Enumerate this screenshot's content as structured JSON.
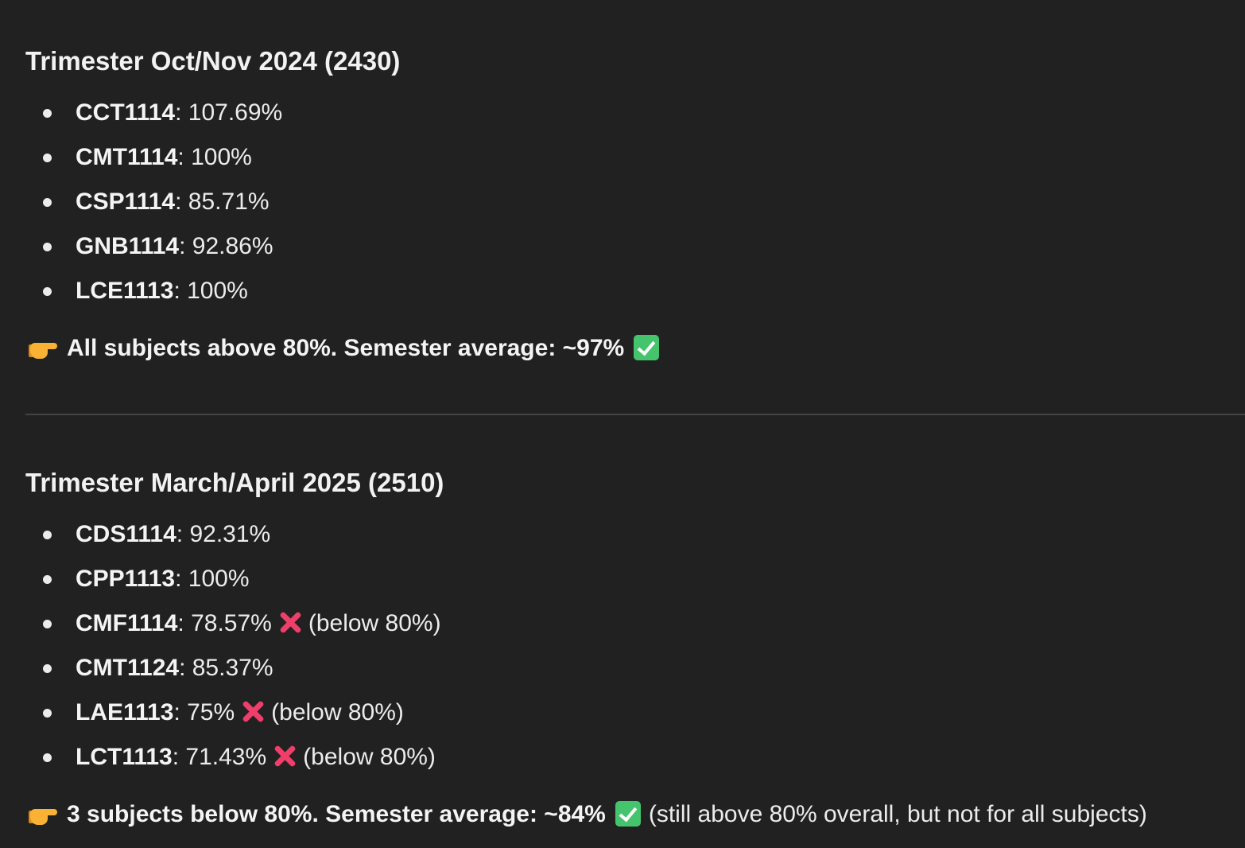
{
  "sections": [
    {
      "title": "Trimester Oct/Nov 2024 (2430)",
      "subjects": [
        {
          "code": "CCT1114",
          "score": ": 107.69%",
          "note": ""
        },
        {
          "code": "CMT1114",
          "score": ": 100%",
          "note": ""
        },
        {
          "code": "CSP1114",
          "score": ": 85.71%",
          "note": ""
        },
        {
          "code": "GNB1114",
          "score": ": 92.86%",
          "note": ""
        },
        {
          "code": "LCE1113",
          "score": ": 100%",
          "note": ""
        }
      ],
      "summary": {
        "text": "All subjects above 80%. Semester average: ~97%",
        "extra": ""
      }
    },
    {
      "title": "Trimester March/April 2025 (2510)",
      "subjects": [
        {
          "code": "CDS1114",
          "score": ": 92.31%",
          "note": ""
        },
        {
          "code": "CPP1113",
          "score": ": 100%",
          "note": ""
        },
        {
          "code": "CMF1114",
          "score": ": 78.57%",
          "note": "(below 80%)"
        },
        {
          "code": "CMT1124",
          "score": ": 85.37%",
          "note": ""
        },
        {
          "code": "LAE1113",
          "score": ": 75%",
          "note": "(below 80%)"
        },
        {
          "code": "LCT1113",
          "score": ": 71.43%",
          "note": "(below 80%)"
        }
      ],
      "summary": {
        "text": "3 subjects below 80%. Semester average: ~84%",
        "extra": "(still above 80% overall, but not for all subjects)"
      }
    }
  ],
  "icons": {
    "pointer": "backhand-index-pointing-right-icon",
    "check": "check-mark-button-icon",
    "cross": "cross-mark-icon"
  },
  "colors": {
    "background": "#212121",
    "check": "#45c46e",
    "cross": "#f03e6a"
  }
}
